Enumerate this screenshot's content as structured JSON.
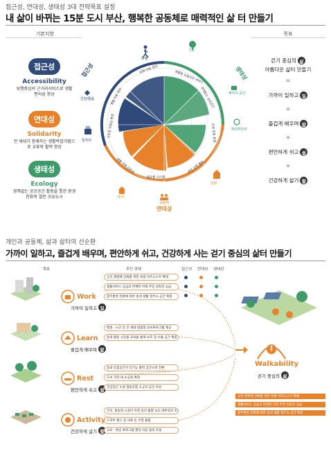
{
  "top": {
    "subtitle": "접근성, 연대성, 생태성 3대 전략목표 설정",
    "title": "내 삶이 바뀌는 15분 도시 부산, 행복한 공동체로 매력적인 삶 터 만들기",
    "left_header": "기본지향",
    "right_header": "목표",
    "principles": [
      {
        "ko": "접근성",
        "en": "Accessibility",
        "desc": "보행중심의 근거리서비스로 생활편의성 향상",
        "color": "#2f4a7a"
      },
      {
        "ko": "연대성",
        "en": "Solidarity",
        "desc": "전 세대가 함께하는 생활복합거점으로 교류와 활력 향상",
        "color": "#e8822a"
      },
      {
        "ko": "생태성",
        "en": "Ecology",
        "desc": "경계없는 공공공간 활용을 통한 환경 친화적 열린 공유도시",
        "color": "#3f9a6a"
      }
    ],
    "goals": [
      {
        "text": "걷기 중심의",
        "char": "삶"
      },
      {
        "text": "아름다운 삶터 만들기",
        "char": ""
      },
      {
        "text": "가까이 일하고",
        "char": "일"
      },
      {
        "text": "즐겁게 배우며",
        "char": "앎"
      },
      {
        "text": "편안하게 쉬고",
        "char": "쉼"
      },
      {
        "text": "건강하게 살기",
        "char": "활"
      }
    ],
    "separator_equals": "=",
    "separator_plus": "+",
    "wheel": {
      "axes": {
        "access": "접근성",
        "eco": "생태성",
        "sol": "연대성"
      },
      "icons": [
        "보행",
        "그린",
        "제이의 공간",
        "에코라이프",
        "문화",
        "공동체",
        "주거",
        "일자리",
        "건강/돌봄"
      ],
      "segment_labels": [
        "보행 이동 편리",
        "생활형 모빌리티 서비스",
        "경계없는 공공공간",
        "상생 친화 환경",
        "세대 교류 활동",
        "물순환 시스템",
        "생활 친화 인프라",
        "고도연 자립성 환경",
        "생활 이동 편의",
        "보행 이동 활성화"
      ]
    }
  },
  "bottom": {
    "subtitle": "개인과 공동체, 삶과 삶터의 선순환",
    "title": "가까이 일하고, 즐겁게 배우며, 편안하게 쉬고, 건강하게 사는 걷기 중심의 삶터 만들기",
    "col_headers": [
      "목표",
      "추진 과제",
      "접근성",
      "연대성",
      "생태성"
    ],
    "categories": [
      {
        "en": "Work",
        "ko": "가까이 일하고",
        "char": "일"
      },
      {
        "en": "Learn",
        "ko": "즐겁게 배우며",
        "char": "앎"
      },
      {
        "en": "Rest",
        "ko": "편안하게 쉬고",
        "char": "쉼"
      },
      {
        "en": "Activity",
        "ko": "건강하게 살기",
        "char": "활"
      }
    ],
    "tasks": [
      [
        "공유 경영체 강화를 위한 로컬 비즈니스지 확대",
        "생활서비스 공급과 연계한 지역 주민 일자리 공급",
        "업무환경 전환에 따른 동네 생활 업무소 공간 확충"
      ],
      [
        "평생 · 노인 등 전 세대 맞춤형 교육프로그램 제공",
        "동네 활동 시간을 교육을 통해 보조 및 소통 공간 확충"
      ],
      [
        "동네 유휴공간이 다기능 활력 공간으로 전환",
        "도보 거리 내 소공원 확대",
        "건강증진 소셜 협동조합 소규모 공간 조성"
      ],
      [
        "건강, 힐링적 시설이 하천 등의 통합 녹도 네트워크 조성",
        "스마트 헬스 및 의료 등 주말 통합",
        "고요 · 명상 프로그램 편의 이용 동네 조성"
      ]
    ],
    "walkability": {
      "en": "Walkability",
      "ko": "걷기 중심의",
      "char": "삶"
    },
    "orange_notes": [
      "공유 경영체 강화를 위한 로컬 비즈니스지 확대",
      "생활서비스 공급과 연계한 지역 주민 일자리 공급",
      "업무환경 전환에 따른 동네 생활 업무소 공간 확충"
    ]
  }
}
